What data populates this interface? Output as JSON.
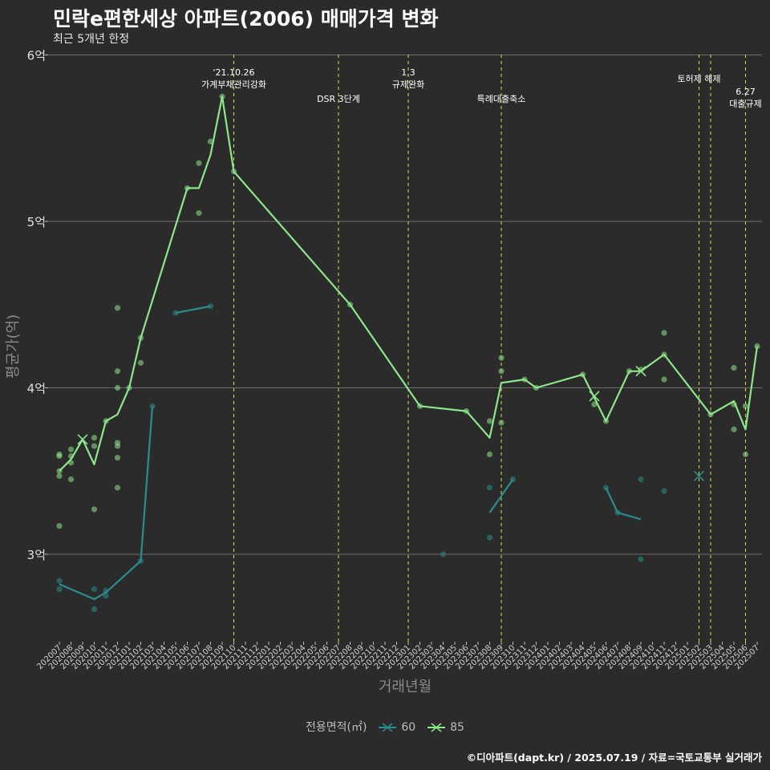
{
  "header": {
    "title": "민락e편한세상 아파트(2006) 매매가격 변화",
    "subtitle": "최근 5개년 한정"
  },
  "caption": "©디아파트(dapt.kr) / 2025.07.19 / 자료=국토교통부 실거래가",
  "legend": {
    "title": "전용면적(㎡)",
    "items": [
      {
        "label": "60",
        "color": "#2a8c8c"
      },
      {
        "label": "85",
        "color": "#8ee68a"
      }
    ]
  },
  "chart_data": {
    "type": "line",
    "xlabel": "거래년월",
    "ylabel": "평균가(억)",
    "ylim": [
      2.5,
      6.05
    ],
    "yticks": [
      {
        "value": 3,
        "label": "3억"
      },
      {
        "value": 4,
        "label": "4억"
      },
      {
        "value": 5,
        "label": "5억"
      },
      {
        "value": 6,
        "label": "6억"
      }
    ],
    "categories": [
      "202007",
      "202008",
      "202009",
      "202010",
      "202011",
      "202012",
      "202101",
      "202102",
      "202103",
      "202104",
      "202105",
      "202106",
      "202107",
      "202108",
      "202109",
      "202110",
      "202111",
      "202112",
      "202201",
      "202202",
      "202203",
      "202204",
      "202205",
      "202206",
      "202207",
      "202208",
      "202209",
      "202210",
      "202211",
      "202212",
      "202301",
      "202302",
      "202303",
      "202304",
      "202305",
      "202306",
      "202307",
      "202308",
      "202309",
      "202310",
      "202311",
      "202312",
      "202401",
      "202402",
      "202403",
      "202404",
      "202405",
      "202406",
      "202407",
      "202408",
      "202409",
      "202410",
      "202411",
      "202412",
      "202501",
      "202502",
      "202503",
      "202504",
      "202505",
      "202506",
      "202507"
    ],
    "series": [
      {
        "name": "60",
        "color": "#2a8c8c",
        "lines": [
          [
            [
              "202007",
              2.82
            ],
            [
              "202010",
              2.73
            ],
            [
              "202011",
              2.77
            ],
            [
              "202102",
              2.96
            ],
            [
              "202103",
              3.89
            ]
          ],
          [
            [
              "202105",
              4.45
            ],
            [
              "202108",
              4.49
            ]
          ],
          [
            [
              "202308",
              3.25
            ],
            [
              "202310",
              3.45
            ]
          ],
          [
            [
              "202406",
              3.4
            ],
            [
              "202407",
              3.25
            ],
            [
              "202409",
              3.21
            ]
          ]
        ],
        "points": [
          [
            "202007",
            2.84
          ],
          [
            "202007",
            2.79
          ],
          [
            "202010",
            2.79
          ],
          [
            "202010",
            2.67
          ],
          [
            "202011",
            2.78
          ],
          [
            "202011",
            2.75
          ],
          [
            "202102",
            2.96
          ],
          [
            "202103",
            3.89
          ],
          [
            "202105",
            4.45
          ],
          [
            "202108",
            4.49
          ],
          [
            "202304",
            3.0
          ],
          [
            "202308",
            3.4
          ],
          [
            "202308",
            3.1
          ],
          [
            "202310",
            3.45
          ],
          [
            "202406",
            3.4
          ],
          [
            "202407",
            3.25
          ],
          [
            "202409",
            3.45
          ],
          [
            "202409",
            2.97
          ],
          [
            "202411",
            3.38
          ]
        ],
        "crosses": [
          [
            "202502",
            3.47
          ]
        ]
      },
      {
        "name": "85",
        "color": "#8ee68a",
        "lines": [
          [
            [
              "202007",
              3.5
            ],
            [
              "202008",
              3.57
            ],
            [
              "202009",
              3.69
            ],
            [
              "202010",
              3.54
            ],
            [
              "202011",
              3.8
            ],
            [
              "202012",
              3.84
            ],
            [
              "202101",
              4.0
            ],
            [
              "202102",
              4.3
            ],
            [
              "202106",
              5.2
            ],
            [
              "202107",
              5.2
            ],
            [
              "202108",
              5.4
            ],
            [
              "202109",
              5.75
            ],
            [
              "202110",
              5.3
            ],
            [
              "202208",
              4.5
            ],
            [
              "202302",
              3.89
            ],
            [
              "202306",
              3.86
            ],
            [
              "202308",
              3.7
            ],
            [
              "202309",
              4.03
            ],
            [
              "202311",
              4.05
            ],
            [
              "202312",
              4.0
            ],
            [
              "202404",
              4.08
            ],
            [
              "202405",
              3.94
            ],
            [
              "202406",
              3.8
            ],
            [
              "202408",
              4.1
            ],
            [
              "202409",
              4.1
            ],
            [
              "202411",
              4.2
            ],
            [
              "202503",
              3.84
            ],
            [
              "202505",
              3.92
            ],
            [
              "202506",
              3.75
            ],
            [
              "202507",
              4.25
            ]
          ]
        ],
        "points": [
          [
            "202007",
            3.6
          ],
          [
            "202007",
            3.59
          ],
          [
            "202007",
            3.5
          ],
          [
            "202007",
            3.47
          ],
          [
            "202007",
            3.17
          ],
          [
            "202008",
            3.63
          ],
          [
            "202008",
            3.59
          ],
          [
            "202008",
            3.55
          ],
          [
            "202008",
            3.45
          ],
          [
            "202010",
            3.7
          ],
          [
            "202010",
            3.65
          ],
          [
            "202010",
            3.27
          ],
          [
            "202011",
            3.8
          ],
          [
            "202012",
            4.48
          ],
          [
            "202012",
            4.1
          ],
          [
            "202012",
            4.0
          ],
          [
            "202012",
            3.67
          ],
          [
            "202012",
            3.65
          ],
          [
            "202012",
            3.58
          ],
          [
            "202012",
            3.4
          ],
          [
            "202101",
            4.0
          ],
          [
            "202102",
            4.3
          ],
          [
            "202102",
            4.15
          ],
          [
            "202106",
            5.2
          ],
          [
            "202107",
            5.35
          ],
          [
            "202107",
            5.05
          ],
          [
            "202108",
            5.48
          ],
          [
            "202109",
            5.75
          ],
          [
            "202110",
            5.3
          ],
          [
            "202208",
            4.5
          ],
          [
            "202302",
            3.89
          ],
          [
            "202306",
            3.86
          ],
          [
            "202308",
            3.8
          ],
          [
            "202308",
            3.6
          ],
          [
            "202309",
            4.18
          ],
          [
            "202309",
            4.1
          ],
          [
            "202309",
            3.79
          ],
          [
            "202311",
            4.05
          ],
          [
            "202312",
            4.0
          ],
          [
            "202404",
            4.08
          ],
          [
            "202405",
            3.9
          ],
          [
            "202406",
            3.8
          ],
          [
            "202408",
            4.1
          ],
          [
            "202409",
            4.11
          ],
          [
            "202411",
            4.33
          ],
          [
            "202411",
            4.2
          ],
          [
            "202411",
            4.05
          ],
          [
            "202503",
            3.84
          ],
          [
            "202505",
            4.12
          ],
          [
            "202505",
            3.9
          ],
          [
            "202505",
            3.75
          ],
          [
            "202506",
            3.89
          ],
          [
            "202506",
            3.6
          ],
          [
            "202507",
            4.25
          ]
        ],
        "crosses": [
          [
            "202009",
            3.69
          ],
          [
            "202405",
            3.95
          ],
          [
            "202409",
            4.1
          ]
        ]
      }
    ],
    "annotations": [
      {
        "x": "202110",
        "text": [
          "'21.10.26",
          "가계부채관리강화"
        ],
        "row": 0
      },
      {
        "x": "202207",
        "text": [
          "DSR 3단계"
        ],
        "row": 2
      },
      {
        "x": "202301",
        "text": [
          "1.3",
          "규제완화"
        ],
        "row": 0
      },
      {
        "x": "202309",
        "text": [
          "특례대출축소"
        ],
        "row": 2
      },
      {
        "x": "202502",
        "text": [
          "토허제 해제"
        ],
        "row": 1
      },
      {
        "x": "202503",
        "text": [],
        "row": 1
      },
      {
        "x": "202506",
        "text": [
          "6.27",
          "대출규제"
        ],
        "row": 2
      }
    ]
  }
}
